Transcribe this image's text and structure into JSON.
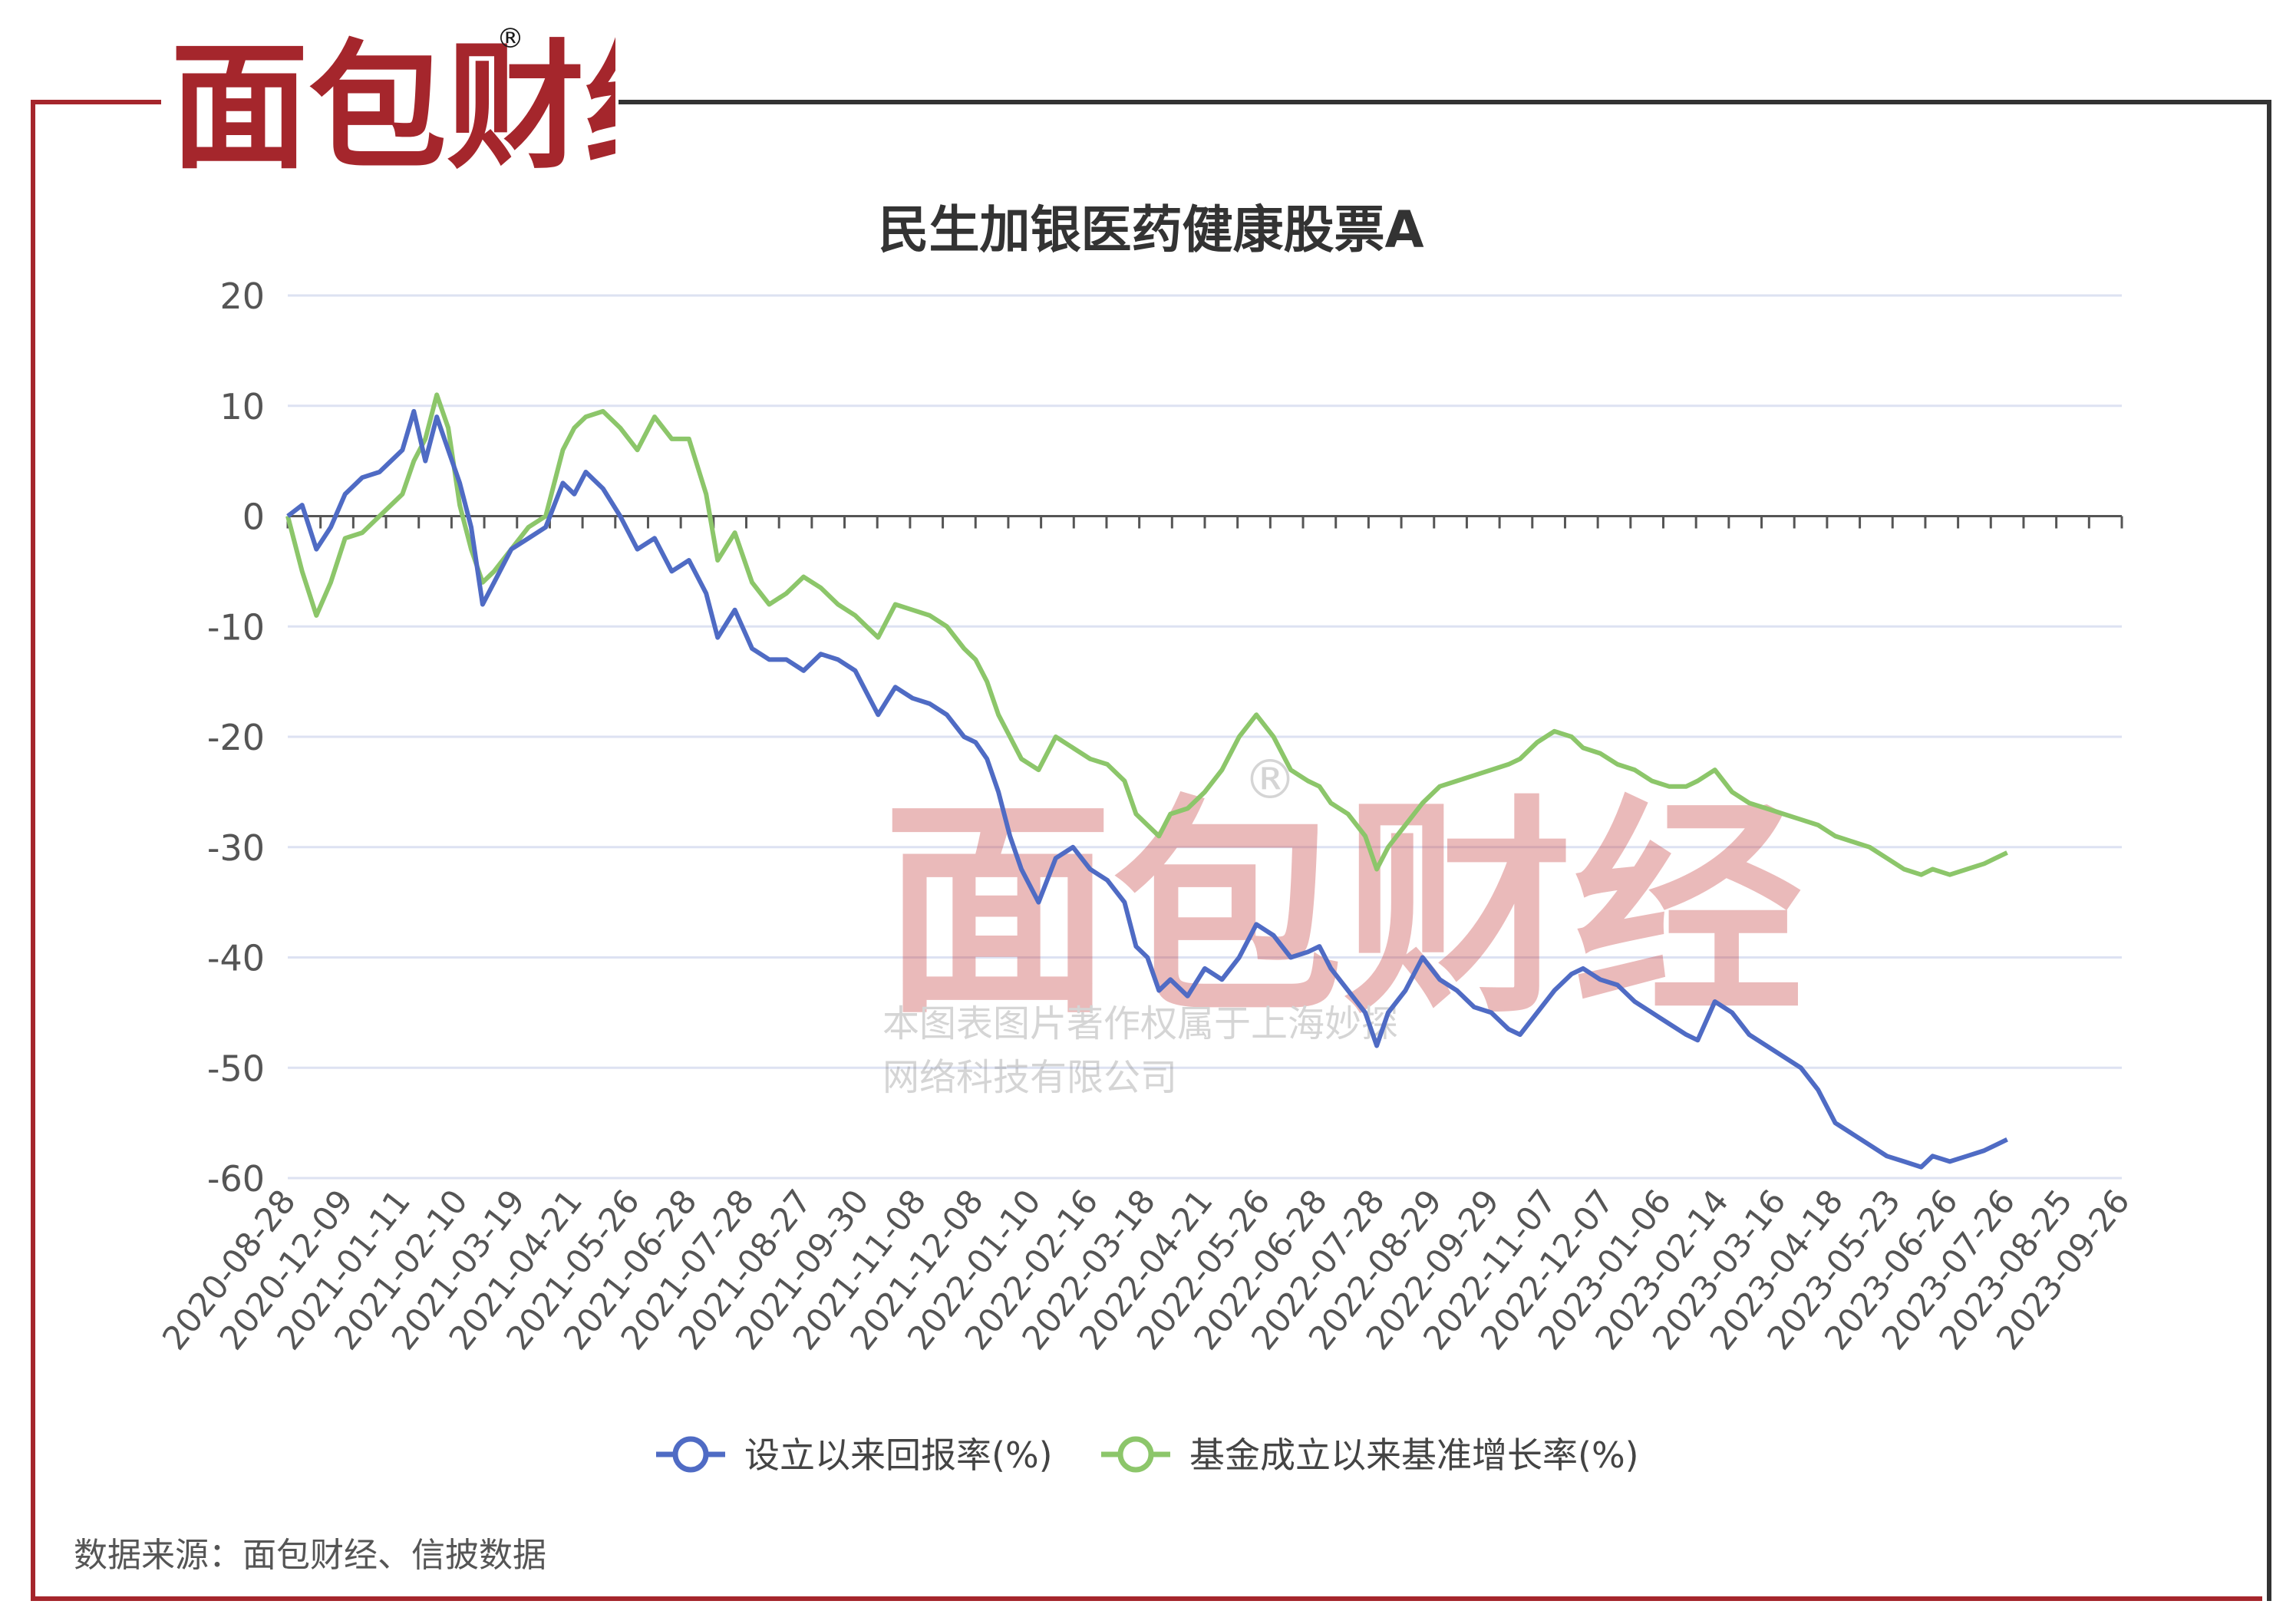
{
  "brand": {
    "logo_text": "面包财经",
    "registered_mark": "®",
    "primary_color": "#a5262c",
    "secondary_color": "#1a1a1a"
  },
  "watermark": {
    "logo_text": "面包财经",
    "registered_mark": "®",
    "line1": "本图表图片著作权属于上海妙探",
    "line2": "网络科技有限公司"
  },
  "source_note": "数据来源：面包财经、信披数据",
  "chart_data": {
    "type": "line",
    "title": "民生加银医药健康股票A",
    "xlabel": "",
    "ylabel": "",
    "ylim": [
      -60,
      20
    ],
    "yticks": [
      20,
      10,
      0,
      -10,
      -20,
      -30,
      -40,
      -50,
      -60
    ],
    "grid": true,
    "legend_position": "bottom",
    "x_tick_labels": [
      "2020-08-28",
      "2020-12-09",
      "2021-01-11",
      "2021-02-10",
      "2021-03-19",
      "2021-04-21",
      "2021-05-26",
      "2021-06-28",
      "2021-07-28",
      "2021-08-27",
      "2021-09-30",
      "2021-11-08",
      "2021-12-08",
      "2022-01-10",
      "2022-02-16",
      "2022-03-18",
      "2022-04-21",
      "2022-05-26",
      "2022-06-28",
      "2022-07-28",
      "2022-08-29",
      "2022-09-29",
      "2022-11-07",
      "2022-12-07",
      "2023-01-06",
      "2023-02-14",
      "2023-03-16",
      "2023-04-18",
      "2023-05-23",
      "2023-06-26",
      "2023-07-26",
      "2023-08-25",
      "2023-09-26"
    ],
    "series": [
      {
        "name": "设立以来回报率(%)",
        "color": "#4f6bc4",
        "points": [
          [
            0,
            0
          ],
          [
            0.25,
            1
          ],
          [
            0.5,
            -3
          ],
          [
            0.75,
            -1
          ],
          [
            1.0,
            2
          ],
          [
            1.3,
            3.5
          ],
          [
            1.6,
            4
          ],
          [
            2.0,
            6
          ],
          [
            2.2,
            9.5
          ],
          [
            2.4,
            5
          ],
          [
            2.6,
            9
          ],
          [
            2.8,
            6
          ],
          [
            3.0,
            3
          ],
          [
            3.2,
            -1
          ],
          [
            3.4,
            -8
          ],
          [
            3.6,
            -6
          ],
          [
            3.9,
            -3
          ],
          [
            4.2,
            -2
          ],
          [
            4.5,
            -1
          ],
          [
            4.8,
            3
          ],
          [
            5.0,
            2
          ],
          [
            5.2,
            4
          ],
          [
            5.5,
            2.5
          ],
          [
            5.8,
            0
          ],
          [
            6.1,
            -3
          ],
          [
            6.4,
            -2
          ],
          [
            6.7,
            -5
          ],
          [
            7.0,
            -4
          ],
          [
            7.3,
            -7
          ],
          [
            7.5,
            -11
          ],
          [
            7.8,
            -8.5
          ],
          [
            8.1,
            -12
          ],
          [
            8.4,
            -13
          ],
          [
            8.7,
            -13
          ],
          [
            9.0,
            -14
          ],
          [
            9.3,
            -12.5
          ],
          [
            9.6,
            -13
          ],
          [
            9.9,
            -14
          ],
          [
            10.1,
            -16
          ],
          [
            10.3,
            -18
          ],
          [
            10.6,
            -15.5
          ],
          [
            10.9,
            -16.5
          ],
          [
            11.2,
            -17
          ],
          [
            11.5,
            -18
          ],
          [
            11.8,
            -20
          ],
          [
            12.0,
            -20.5
          ],
          [
            12.2,
            -22
          ],
          [
            12.4,
            -25
          ],
          [
            12.6,
            -29
          ],
          [
            12.8,
            -32
          ],
          [
            13.1,
            -35
          ],
          [
            13.4,
            -31
          ],
          [
            13.7,
            -30
          ],
          [
            14.0,
            -32
          ],
          [
            14.3,
            -33
          ],
          [
            14.6,
            -35
          ],
          [
            14.8,
            -39
          ],
          [
            15.0,
            -40
          ],
          [
            15.2,
            -43
          ],
          [
            15.4,
            -42
          ],
          [
            15.7,
            -43.5
          ],
          [
            16.0,
            -41
          ],
          [
            16.3,
            -42
          ],
          [
            16.6,
            -40
          ],
          [
            16.9,
            -37
          ],
          [
            17.2,
            -38
          ],
          [
            17.5,
            -40
          ],
          [
            17.8,
            -39.5
          ],
          [
            18.0,
            -39
          ],
          [
            18.2,
            -41
          ],
          [
            18.5,
            -43
          ],
          [
            18.8,
            -45
          ],
          [
            19.0,
            -48
          ],
          [
            19.2,
            -45
          ],
          [
            19.5,
            -43
          ],
          [
            19.8,
            -40
          ],
          [
            20.1,
            -42
          ],
          [
            20.4,
            -43
          ],
          [
            20.7,
            -44.5
          ],
          [
            21.0,
            -45
          ],
          [
            21.3,
            -46.5
          ],
          [
            21.5,
            -47
          ],
          [
            21.8,
            -45
          ],
          [
            22.1,
            -43
          ],
          [
            22.4,
            -41.5
          ],
          [
            22.6,
            -41
          ],
          [
            22.9,
            -42
          ],
          [
            23.2,
            -42.5
          ],
          [
            23.5,
            -44
          ],
          [
            23.8,
            -45
          ],
          [
            24.1,
            -46
          ],
          [
            24.4,
            -47
          ],
          [
            24.6,
            -47.5
          ],
          [
            24.9,
            -44
          ],
          [
            25.2,
            -45
          ],
          [
            25.5,
            -47
          ],
          [
            25.8,
            -48
          ],
          [
            26.1,
            -49
          ],
          [
            26.4,
            -50
          ],
          [
            26.7,
            -52
          ],
          [
            27.0,
            -55
          ],
          [
            27.3,
            -56
          ],
          [
            27.6,
            -57
          ],
          [
            27.9,
            -58
          ],
          [
            28.2,
            -58.5
          ],
          [
            28.5,
            -59
          ],
          [
            28.7,
            -58
          ],
          [
            29.0,
            -58.5
          ],
          [
            29.3,
            -58
          ],
          [
            29.6,
            -57.5
          ],
          [
            29.8,
            -57
          ],
          [
            30.0,
            -56.5
          ]
        ]
      },
      {
        "name": "基金成立以来基准增长率(%)",
        "color": "#8cc66a",
        "points": [
          [
            0,
            0
          ],
          [
            0.25,
            -5
          ],
          [
            0.5,
            -9
          ],
          [
            0.75,
            -6
          ],
          [
            1.0,
            -2
          ],
          [
            1.3,
            -1.5
          ],
          [
            1.6,
            0
          ],
          [
            2.0,
            2
          ],
          [
            2.2,
            5
          ],
          [
            2.4,
            7
          ],
          [
            2.6,
            11
          ],
          [
            2.8,
            8
          ],
          [
            3.0,
            1
          ],
          [
            3.2,
            -3
          ],
          [
            3.4,
            -6
          ],
          [
            3.6,
            -5
          ],
          [
            3.9,
            -3
          ],
          [
            4.2,
            -1
          ],
          [
            4.5,
            0
          ],
          [
            4.8,
            6
          ],
          [
            5.0,
            8
          ],
          [
            5.2,
            9
          ],
          [
            5.5,
            9.5
          ],
          [
            5.8,
            8
          ],
          [
            6.1,
            6
          ],
          [
            6.4,
            9
          ],
          [
            6.7,
            7
          ],
          [
            7.0,
            7
          ],
          [
            7.3,
            2
          ],
          [
            7.5,
            -4
          ],
          [
            7.8,
            -1.5
          ],
          [
            8.1,
            -6
          ],
          [
            8.4,
            -8
          ],
          [
            8.7,
            -7
          ],
          [
            9.0,
            -5.5
          ],
          [
            9.3,
            -6.5
          ],
          [
            9.6,
            -8
          ],
          [
            9.9,
            -9
          ],
          [
            10.1,
            -10
          ],
          [
            10.3,
            -11
          ],
          [
            10.6,
            -8
          ],
          [
            10.9,
            -8.5
          ],
          [
            11.2,
            -9
          ],
          [
            11.5,
            -10
          ],
          [
            11.8,
            -12
          ],
          [
            12.0,
            -13
          ],
          [
            12.2,
            -15
          ],
          [
            12.4,
            -18
          ],
          [
            12.6,
            -20
          ],
          [
            12.8,
            -22
          ],
          [
            13.1,
            -23
          ],
          [
            13.4,
            -20
          ],
          [
            13.7,
            -21
          ],
          [
            14.0,
            -22
          ],
          [
            14.3,
            -22.5
          ],
          [
            14.6,
            -24
          ],
          [
            14.8,
            -27
          ],
          [
            15.0,
            -28
          ],
          [
            15.2,
            -29
          ],
          [
            15.4,
            -27
          ],
          [
            15.7,
            -26.5
          ],
          [
            16.0,
            -25
          ],
          [
            16.3,
            -23
          ],
          [
            16.6,
            -20
          ],
          [
            16.9,
            -18
          ],
          [
            17.2,
            -20
          ],
          [
            17.5,
            -23
          ],
          [
            17.8,
            -24
          ],
          [
            18.0,
            -24.5
          ],
          [
            18.2,
            -26
          ],
          [
            18.5,
            -27
          ],
          [
            18.8,
            -29
          ],
          [
            19.0,
            -32
          ],
          [
            19.2,
            -30
          ],
          [
            19.5,
            -28
          ],
          [
            19.8,
            -26
          ],
          [
            20.1,
            -24.5
          ],
          [
            20.4,
            -24
          ],
          [
            20.7,
            -23.5
          ],
          [
            21.0,
            -23
          ],
          [
            21.3,
            -22.5
          ],
          [
            21.5,
            -22
          ],
          [
            21.8,
            -20.5
          ],
          [
            22.1,
            -19.5
          ],
          [
            22.4,
            -20
          ],
          [
            22.6,
            -21
          ],
          [
            22.9,
            -21.5
          ],
          [
            23.2,
            -22.5
          ],
          [
            23.5,
            -23
          ],
          [
            23.8,
            -24
          ],
          [
            24.1,
            -24.5
          ],
          [
            24.4,
            -24.5
          ],
          [
            24.6,
            -24
          ],
          [
            24.9,
            -23
          ],
          [
            25.2,
            -25
          ],
          [
            25.5,
            -26
          ],
          [
            25.8,
            -26.5
          ],
          [
            26.1,
            -27
          ],
          [
            26.4,
            -27.5
          ],
          [
            26.7,
            -28
          ],
          [
            27.0,
            -29
          ],
          [
            27.3,
            -29.5
          ],
          [
            27.6,
            -30
          ],
          [
            27.9,
            -31
          ],
          [
            28.2,
            -32
          ],
          [
            28.5,
            -32.5
          ],
          [
            28.7,
            -32
          ],
          [
            29.0,
            -32.5
          ],
          [
            29.3,
            -32
          ],
          [
            29.6,
            -31.5
          ],
          [
            29.8,
            -31
          ],
          [
            30.0,
            -30.5
          ]
        ]
      }
    ]
  }
}
